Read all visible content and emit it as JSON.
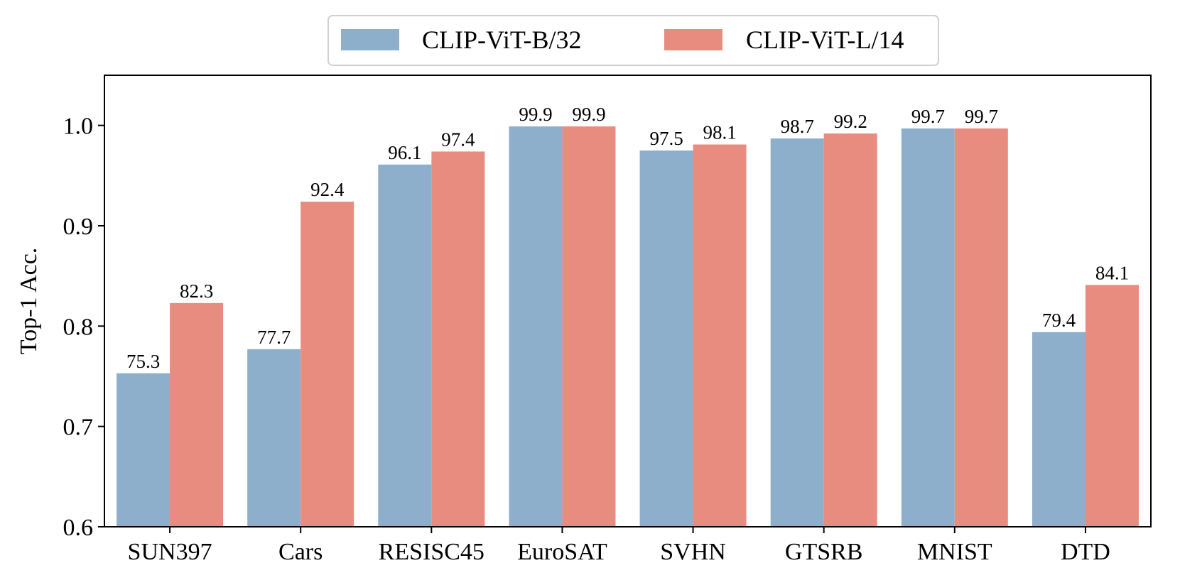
{
  "chart_data": {
    "type": "bar",
    "title": "",
    "xlabel": "",
    "ylabel": "Top-1 Acc.",
    "ylim": [
      0.6,
      1.05
    ],
    "yticks": [
      "0.6",
      "0.7",
      "0.8",
      "0.9",
      "1.0"
    ],
    "grid": false,
    "legend_position": "top-center",
    "categories": [
      "SUN397",
      "Cars",
      "RESISC45",
      "EuroSAT",
      "SVHN",
      "GTSRB",
      "MNIST",
      "DTD"
    ],
    "series": [
      {
        "name": "CLIP-ViT-B/32",
        "color": "#8dafcb",
        "values": [
          0.753,
          0.777,
          0.961,
          0.999,
          0.975,
          0.987,
          0.997,
          0.794
        ],
        "labels": [
          "75.3",
          "77.7",
          "96.1",
          "99.9",
          "97.5",
          "98.7",
          "99.7",
          "79.4"
        ]
      },
      {
        "name": "CLIP-ViT-L/14",
        "color": "#e88c80",
        "values": [
          0.823,
          0.924,
          0.974,
          0.999,
          0.981,
          0.992,
          0.997,
          0.841
        ],
        "labels": [
          "82.3",
          "92.4",
          "97.4",
          "99.9",
          "98.1",
          "99.2",
          "99.7",
          "84.1"
        ]
      }
    ]
  }
}
